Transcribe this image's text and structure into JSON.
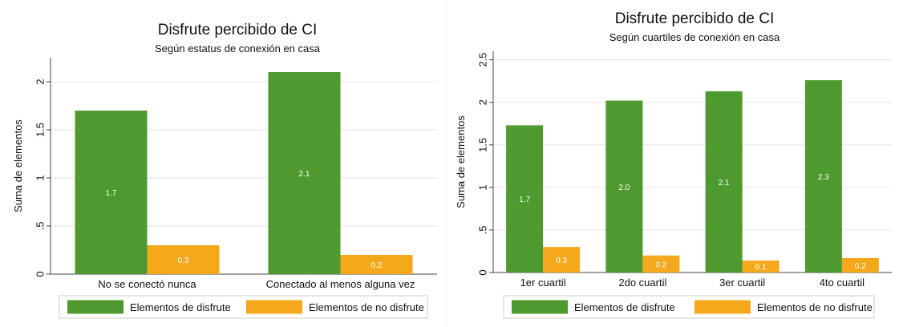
{
  "colors": {
    "enjoy": "#4e9a2f",
    "no_enjoy": "#f5a81c",
    "grid": "#e6e6e6",
    "axis": "#444444"
  },
  "chart_data": [
    {
      "type": "bar",
      "title": "Disfrute percibido de CI",
      "subtitle": "Según estatus de conexión en casa",
      "ylabel": "Suma de elementos",
      "xlabel": "",
      "ylim": [
        0,
        2.25
      ],
      "yticks": [
        0,
        0.5,
        1,
        1.5,
        2
      ],
      "ytick_labels": [
        "0",
        ".5",
        "1",
        "1.5",
        "2"
      ],
      "categories": [
        "No se conectó nunca",
        "Conectado al menos alguna vez"
      ],
      "series": [
        {
          "name": "Elementos de disfrute",
          "values": [
            1.7,
            2.1
          ],
          "labels": [
            "1.7",
            "2.1"
          ]
        },
        {
          "name": "Elementos de no disfrute",
          "values": [
            0.3,
            0.2
          ],
          "labels": [
            "0.3",
            "0.2"
          ]
        }
      ],
      "grid": true,
      "legend_position": "bottom"
    },
    {
      "type": "bar",
      "title": "Disfrute percibido de CI",
      "subtitle": "Según cuartiles de conexión en casa",
      "ylabel": "Suma de elementos",
      "xlabel": "",
      "ylim": [
        0,
        2.6
      ],
      "yticks": [
        0,
        0.5,
        1,
        1.5,
        2,
        2.5
      ],
      "ytick_labels": [
        "0",
        ".5",
        "1",
        "1.5",
        "2",
        "2.5"
      ],
      "categories": [
        "1er cuartil",
        "2do cuartil",
        "3er cuartil",
        "4to cuartil"
      ],
      "series": [
        {
          "name": "Elementos de disfrute",
          "values": [
            1.73,
            2.02,
            2.13,
            2.26
          ],
          "labels": [
            "1.7",
            "2.0",
            "2.1",
            "2.3"
          ]
        },
        {
          "name": "Elementos de no disfrute",
          "values": [
            0.3,
            0.2,
            0.14,
            0.17
          ],
          "labels": [
            "0.3",
            "0.2",
            "0.1",
            "0.2"
          ]
        }
      ],
      "grid": true,
      "legend_position": "bottom"
    }
  ]
}
